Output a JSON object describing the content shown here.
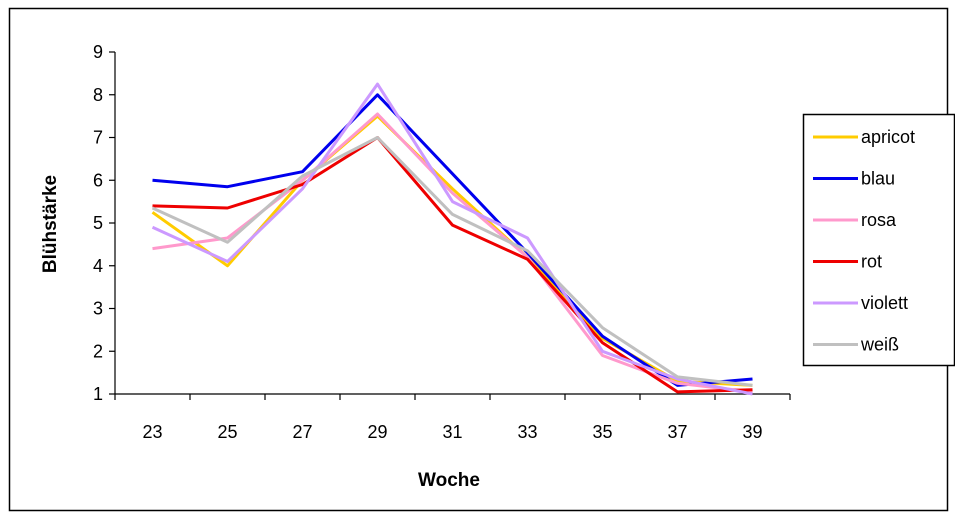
{
  "chart_data": {
    "type": "line",
    "title": "",
    "xlabel": "Woche",
    "ylabel": "Blühstärke",
    "x": [
      23,
      25,
      27,
      29,
      31,
      33,
      35,
      37,
      39
    ],
    "ylim": [
      1,
      9
    ],
    "yticks": [
      1,
      2,
      3,
      4,
      5,
      6,
      7,
      8,
      9
    ],
    "grid": false,
    "legend_position": "right",
    "series": [
      {
        "name": "apricot",
        "color": "#ffcc00",
        "values": [
          5.25,
          4.0,
          6.0,
          7.5,
          5.8,
          4.2,
          2.3,
          1.3,
          1.2
        ]
      },
      {
        "name": "blau",
        "color": "#0000ee",
        "values": [
          6.0,
          5.85,
          6.2,
          8.0,
          6.15,
          4.3,
          2.35,
          1.2,
          1.35
        ]
      },
      {
        "name": "rosa",
        "color": "#ff99cc",
        "values": [
          4.4,
          4.65,
          6.0,
          7.55,
          5.7,
          4.2,
          1.9,
          1.25,
          1.05
        ]
      },
      {
        "name": "rot",
        "color": "#ee0000",
        "values": [
          5.4,
          5.35,
          5.9,
          7.0,
          4.95,
          4.15,
          2.2,
          1.05,
          1.1
        ]
      },
      {
        "name": "violett",
        "color": "#cc99ff",
        "values": [
          4.9,
          4.1,
          5.8,
          8.25,
          5.5,
          4.65,
          2.0,
          1.35,
          1.0
        ]
      },
      {
        "name": "weiß",
        "color": "#c0c0c0",
        "values": [
          5.35,
          4.55,
          6.1,
          7.0,
          5.2,
          4.35,
          2.55,
          1.4,
          1.2
        ]
      }
    ]
  }
}
